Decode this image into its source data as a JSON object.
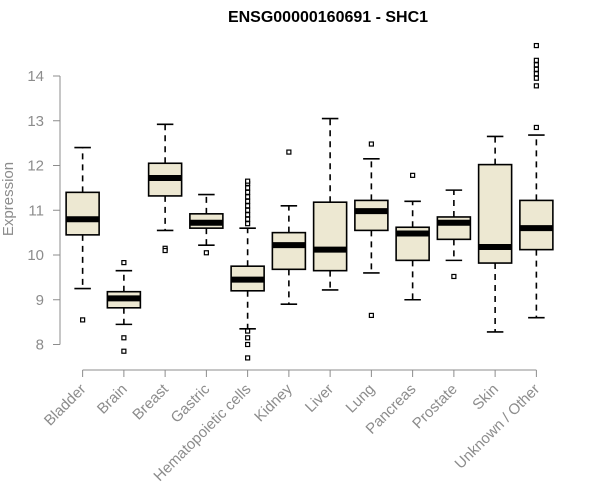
{
  "chart_data": {
    "type": "boxplot",
    "title": "ENSG00000160691 - SHC1",
    "xlabel": "",
    "ylabel": "Expression",
    "ylim": [
      7.6,
      14.85
    ],
    "yticks": [
      8,
      9,
      10,
      11,
      12,
      13,
      14
    ],
    "grid": false,
    "colors": {
      "box_fill": "#ede8d2",
      "stroke": "#000000",
      "axis": "#8c8c8c"
    },
    "categories": [
      "Bladder",
      "Brain",
      "Breast",
      "Gastric",
      "Hematopoietic cells",
      "Kidney",
      "Liver",
      "Lung",
      "Pancreas",
      "Prostate",
      "Skin",
      "Unknown / Other"
    ],
    "boxes": [
      {
        "category": "Bladder",
        "whisker_low": 9.25,
        "q1": 10.45,
        "median": 10.8,
        "q3": 11.4,
        "whisker_high": 12.4,
        "outliers": [
          8.55
        ]
      },
      {
        "category": "Brain",
        "whisker_low": 8.45,
        "q1": 8.82,
        "median": 9.03,
        "q3": 9.18,
        "whisker_high": 9.65,
        "outliers": [
          9.83,
          8.15,
          7.85
        ]
      },
      {
        "category": "Breast",
        "whisker_low": 10.55,
        "q1": 11.32,
        "median": 11.72,
        "q3": 12.05,
        "whisker_high": 12.92,
        "outliers": [
          10.15,
          10.1
        ]
      },
      {
        "category": "Gastric",
        "whisker_low": 10.22,
        "q1": 10.6,
        "median": 10.72,
        "q3": 10.92,
        "whisker_high": 11.35,
        "outliers": [
          10.05
        ]
      },
      {
        "category": "Hematopoietic cells",
        "whisker_low": 8.35,
        "q1": 9.2,
        "median": 9.45,
        "q3": 9.75,
        "whisker_high": 10.6,
        "outliers": [
          10.7,
          10.8,
          10.9,
          11.0,
          11.1,
          11.2,
          11.3,
          11.4,
          11.5,
          11.6,
          11.65,
          8.3,
          8.15,
          8.0,
          7.7
        ]
      },
      {
        "category": "Kidney",
        "whisker_low": 8.9,
        "q1": 9.68,
        "median": 10.22,
        "q3": 10.5,
        "whisker_high": 11.1,
        "outliers": [
          12.3
        ]
      },
      {
        "category": "Liver",
        "whisker_low": 9.22,
        "q1": 9.65,
        "median": 10.12,
        "q3": 11.18,
        "whisker_high": 13.05,
        "outliers": []
      },
      {
        "category": "Lung",
        "whisker_low": 9.6,
        "q1": 10.55,
        "median": 10.98,
        "q3": 11.22,
        "whisker_high": 12.15,
        "outliers": [
          12.48,
          8.65
        ]
      },
      {
        "category": "Pancreas",
        "whisker_low": 9.0,
        "q1": 9.88,
        "median": 10.48,
        "q3": 10.62,
        "whisker_high": 11.2,
        "outliers": [
          11.78
        ]
      },
      {
        "category": "Prostate",
        "whisker_low": 9.88,
        "q1": 10.35,
        "median": 10.72,
        "q3": 10.85,
        "whisker_high": 11.45,
        "outliers": [
          9.52
        ]
      },
      {
        "category": "Skin",
        "whisker_low": 8.28,
        "q1": 9.82,
        "median": 10.18,
        "q3": 12.02,
        "whisker_high": 12.65,
        "outliers": []
      },
      {
        "category": "Unknown / Other",
        "whisker_low": 8.6,
        "q1": 10.12,
        "median": 10.6,
        "q3": 11.22,
        "whisker_high": 12.68,
        "outliers": [
          12.85,
          13.78,
          13.95,
          14.05,
          14.15,
          14.25,
          14.35,
          14.68
        ]
      }
    ]
  }
}
